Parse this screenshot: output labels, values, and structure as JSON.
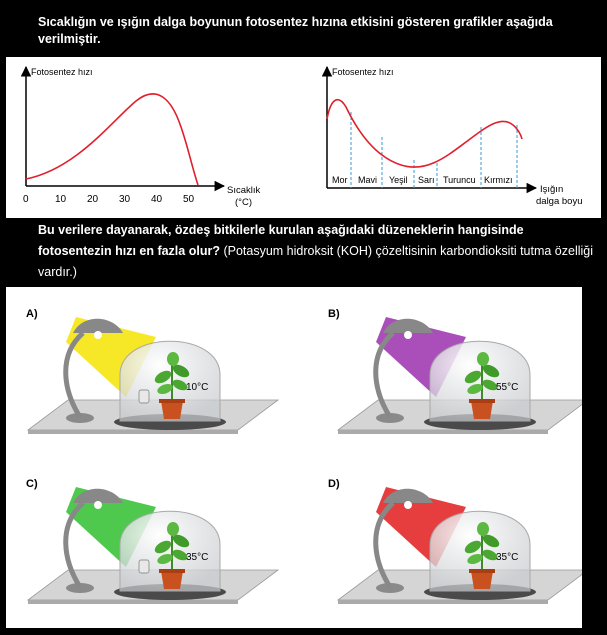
{
  "intro_text": "Sıcaklığın ve ışığın dalga boyunun fotosentez hızına etkisini gösteren grafikler aşağıda verilmiştir.",
  "graph1": {
    "ylabel": "Fotosentez hızı",
    "xlabel_line1": "Sıcaklık",
    "xlabel_line2": "(°C)",
    "ticks": [
      "0",
      "10",
      "20",
      "30",
      "40",
      "50"
    ],
    "line_color": "#e0202c"
  },
  "graph2": {
    "ylabel": "Fotosentez hızı",
    "xlabel_line1": "Işığın",
    "xlabel_line2": "dalga boyu",
    "colors": [
      "Mor",
      "Mavi",
      "Yeşil",
      "Sarı",
      "Turuncu",
      "Kırmızı"
    ],
    "line_color": "#e0202c",
    "divider_color": "#3a9ad9"
  },
  "question_bold": "Bu verilere dayanarak, özdeş bitkilerle kurulan aşağıdaki düzeneklerin hangisinde fotosentezin hızı en fazla olur?",
  "question_note": "(Potasyum hidroksit (KOH) çözeltisinin karbondioksiti tutma özelliği vardır.)",
  "options": [
    {
      "label": "A)",
      "temp": "10°C",
      "light": "yellow",
      "light_hex": "#f5e400",
      "koh": true
    },
    {
      "label": "B)",
      "temp": "55°C",
      "light": "purple",
      "light_hex": "#9b2fae",
      "koh": false
    },
    {
      "label": "C)",
      "temp": "35°C",
      "light": "green",
      "light_hex": "#2fbf2f",
      "koh": true
    },
    {
      "label": "D)",
      "temp": "35°C",
      "light": "red",
      "light_hex": "#e21c1c",
      "koh": false
    }
  ]
}
